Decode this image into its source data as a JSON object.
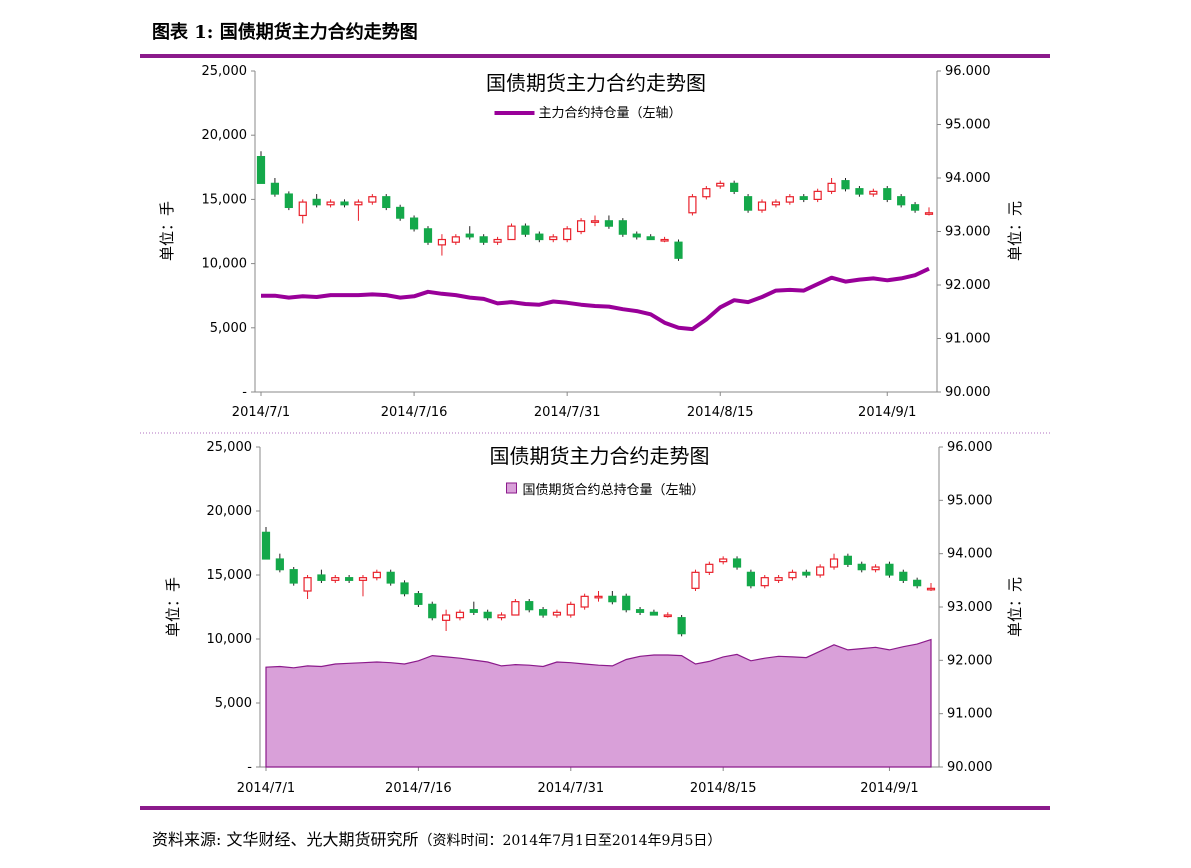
{
  "header": {
    "title": "图表 1:  国债期货主力合约走势图"
  },
  "source": {
    "prefix": "资料来源:  文华财经、光大期货研究所",
    "note": "（资料时间：2014年7月1日至2014年9月5日）"
  },
  "colors": {
    "accent": "#8b1a8b",
    "line": "#990099",
    "area_fill": "#d9a0d9",
    "up": "#e8202a",
    "down": "#14a84a",
    "divider": "#b070c0"
  },
  "chart_data": [
    {
      "type": "line",
      "title": "国债期货主力合约走势图",
      "legend": {
        "label": "主力合约持仓量（左轴）",
        "placement": "top-center"
      },
      "ylabel_left": "单位：手",
      "ylabel_right": "单位：元",
      "xlabel": "",
      "x_ticks": [
        "2014/7/1",
        "2014/7/16",
        "2014/7/31",
        "2014/8/15",
        "2014/9/1"
      ],
      "y_left_ticks": [
        "-",
        "5,000",
        "10,000",
        "15,000",
        "20,000",
        "25,000"
      ],
      "y_right_ticks": [
        "90.000",
        "91.000",
        "92.000",
        "93.000",
        "94.000",
        "95.000",
        "96.000"
      ],
      "ylim_left": [
        0,
        25000
      ],
      "ylim_right": [
        90,
        96
      ],
      "series": [
        {
          "name": "主力合约持仓量（左轴）",
          "axis": "left",
          "values": [
            7500,
            7500,
            7350,
            7450,
            7400,
            7550,
            7550,
            7550,
            7600,
            7550,
            7350,
            7450,
            7800,
            7650,
            7550,
            7350,
            7250,
            6900,
            7000,
            6850,
            6800,
            7050,
            6950,
            6800,
            6700,
            6650,
            6450,
            6300,
            6050,
            5400,
            5000,
            4900,
            5650,
            6600,
            7150,
            7000,
            7400,
            7900,
            7950,
            7900,
            8400,
            8900,
            8600,
            8750,
            8850,
            8700,
            8850,
            9100,
            9600
          ]
        }
      ],
      "candles": [
        {
          "o": 94.4,
          "c": 93.9,
          "h": 94.5,
          "l": 93.9
        },
        {
          "o": 93.9,
          "c": 93.7,
          "h": 94.0,
          "l": 93.65
        },
        {
          "o": 93.7,
          "c": 93.45,
          "h": 93.75,
          "l": 93.4
        },
        {
          "o": 93.3,
          "c": 93.55,
          "h": 93.6,
          "l": 93.15
        },
        {
          "o": 93.6,
          "c": 93.5,
          "h": 93.7,
          "l": 93.45
        },
        {
          "o": 93.5,
          "c": 93.55,
          "h": 93.6,
          "l": 93.45
        },
        {
          "o": 93.55,
          "c": 93.5,
          "h": 93.6,
          "l": 93.45
        },
        {
          "o": 93.5,
          "c": 93.55,
          "h": 93.6,
          "l": 93.2
        },
        {
          "o": 93.55,
          "c": 93.65,
          "h": 93.7,
          "l": 93.5
        },
        {
          "o": 93.65,
          "c": 93.45,
          "h": 93.7,
          "l": 93.4
        },
        {
          "o": 93.45,
          "c": 93.25,
          "h": 93.5,
          "l": 93.2
        },
        {
          "o": 93.25,
          "c": 93.05,
          "h": 93.3,
          "l": 93.0
        },
        {
          "o": 93.05,
          "c": 92.8,
          "h": 93.1,
          "l": 92.75
        },
        {
          "o": 92.75,
          "c": 92.85,
          "h": 92.95,
          "l": 92.55
        },
        {
          "o": 92.8,
          "c": 92.9,
          "h": 92.95,
          "l": 92.75
        },
        {
          "o": 92.95,
          "c": 92.9,
          "h": 93.1,
          "l": 92.85
        },
        {
          "o": 92.9,
          "c": 92.8,
          "h": 92.95,
          "l": 92.75
        },
        {
          "o": 92.8,
          "c": 92.85,
          "h": 92.9,
          "l": 92.75
        },
        {
          "o": 92.85,
          "c": 93.1,
          "h": 93.15,
          "l": 92.85
        },
        {
          "o": 93.1,
          "c": 92.95,
          "h": 93.15,
          "l": 92.9
        },
        {
          "o": 92.95,
          "c": 92.85,
          "h": 93.0,
          "l": 92.8
        },
        {
          "o": 92.85,
          "c": 92.9,
          "h": 92.95,
          "l": 92.8
        },
        {
          "o": 92.85,
          "c": 93.05,
          "h": 93.1,
          "l": 92.8
        },
        {
          "o": 93.0,
          "c": 93.2,
          "h": 93.25,
          "l": 92.95
        },
        {
          "o": 93.2,
          "c": 93.2,
          "h": 93.3,
          "l": 93.1
        },
        {
          "o": 93.2,
          "c": 93.1,
          "h": 93.3,
          "l": 93.05
        },
        {
          "o": 93.2,
          "c": 92.95,
          "h": 93.25,
          "l": 92.9
        },
        {
          "o": 92.95,
          "c": 92.9,
          "h": 93.0,
          "l": 92.85
        },
        {
          "o": 92.9,
          "c": 92.85,
          "h": 92.95,
          "l": 92.85
        },
        {
          "o": 92.85,
          "c": 92.85,
          "h": 92.9,
          "l": 92.8
        },
        {
          "o": 92.8,
          "c": 92.5,
          "h": 92.85,
          "l": 92.45
        },
        {
          "o": 93.35,
          "c": 93.65,
          "h": 93.7,
          "l": 93.3
        },
        {
          "o": 93.65,
          "c": 93.8,
          "h": 93.85,
          "l": 93.6
        },
        {
          "o": 93.85,
          "c": 93.9,
          "h": 93.95,
          "l": 93.8
        },
        {
          "o": 93.9,
          "c": 93.75,
          "h": 93.95,
          "l": 93.7
        },
        {
          "o": 93.65,
          "c": 93.4,
          "h": 93.7,
          "l": 93.35
        },
        {
          "o": 93.4,
          "c": 93.55,
          "h": 93.6,
          "l": 93.35
        },
        {
          "o": 93.5,
          "c": 93.55,
          "h": 93.6,
          "l": 93.45
        },
        {
          "o": 93.55,
          "c": 93.65,
          "h": 93.7,
          "l": 93.5
        },
        {
          "o": 93.65,
          "c": 93.6,
          "h": 93.7,
          "l": 93.55
        },
        {
          "o": 93.6,
          "c": 93.75,
          "h": 93.8,
          "l": 93.55
        },
        {
          "o": 93.75,
          "c": 93.9,
          "h": 94.0,
          "l": 93.7
        },
        {
          "o": 93.95,
          "c": 93.8,
          "h": 94.0,
          "l": 93.75
        },
        {
          "o": 93.8,
          "c": 93.7,
          "h": 93.85,
          "l": 93.65
        },
        {
          "o": 93.7,
          "c": 93.75,
          "h": 93.8,
          "l": 93.65
        },
        {
          "o": 93.8,
          "c": 93.6,
          "h": 93.85,
          "l": 93.55
        },
        {
          "o": 93.65,
          "c": 93.5,
          "h": 93.7,
          "l": 93.45
        },
        {
          "o": 93.5,
          "c": 93.4,
          "h": 93.55,
          "l": 93.35
        },
        {
          "o": 93.35,
          "c": 93.35,
          "h": 93.45,
          "l": 93.3
        }
      ]
    },
    {
      "type": "area",
      "title": "国债期货主力合约走势图",
      "legend": {
        "label": "国债期货合约总持仓量（左轴）",
        "placement": "top-center"
      },
      "ylabel_left": "单位：手",
      "ylabel_right": "单位：元",
      "xlabel": "",
      "x_ticks": [
        "2014/7/1",
        "2014/7/16",
        "2014/7/31",
        "2014/8/15",
        "2014/9/1"
      ],
      "y_left_ticks": [
        "-",
        "5,000",
        "10,000",
        "15,000",
        "20,000",
        "25,000"
      ],
      "y_right_ticks": [
        "90.000",
        "91.000",
        "92.000",
        "93.000",
        "94.000",
        "95.000",
        "96.000"
      ],
      "ylim_left": [
        0,
        25000
      ],
      "ylim_right": [
        90,
        96
      ],
      "series": [
        {
          "name": "国债期货合约总持仓量（左轴）",
          "axis": "left",
          "values": [
            7800,
            7850,
            7750,
            7900,
            7850,
            8050,
            8100,
            8150,
            8200,
            8150,
            8050,
            8300,
            8700,
            8600,
            8500,
            8350,
            8200,
            7900,
            8000,
            7950,
            7850,
            8200,
            8150,
            8050,
            7950,
            7900,
            8400,
            8650,
            8750,
            8750,
            8700,
            8050,
            8250,
            8600,
            8800,
            8300,
            8500,
            8650,
            8600,
            8550,
            9050,
            9550,
            9150,
            9250,
            9350,
            9150,
            9400,
            9600,
            9950
          ]
        }
      ],
      "candles_same_as_chart": 1
    }
  ]
}
